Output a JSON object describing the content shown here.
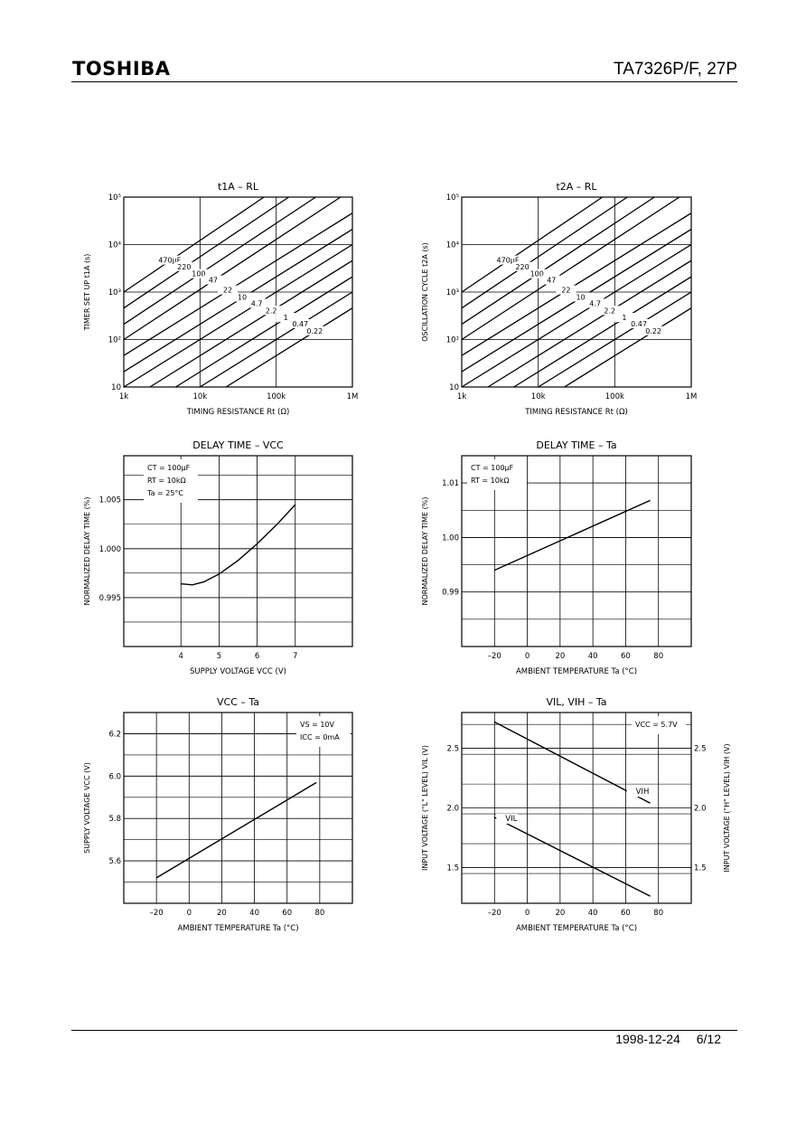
{
  "header": {
    "brand": "TOSHIBA",
    "part_number": "TA7326P/F, 27P"
  },
  "footer": {
    "date": "1998-12-24",
    "page": "6/12"
  },
  "chart_data": [
    {
      "id": "t1a",
      "type": "line",
      "title": "t1A – RL",
      "xlabel": "TIMING RESISTANCE  Rt  (Ω)",
      "ylabel": "TIMER SET UP  t1A  (s)",
      "xscale": "log",
      "yscale": "log",
      "xlim": [
        1000,
        1000000
      ],
      "ylim": [
        10,
        100000
      ],
      "xticks": [
        "1k",
        "10k",
        "100k",
        "1M"
      ],
      "yticks": [
        "10",
        "10²",
        "10³",
        "10⁴",
        "10⁵"
      ],
      "series": [
        {
          "name": "470μF",
          "x": [
            1000,
            69000
          ],
          "y": [
            1000,
            100000
          ]
        },
        {
          "name": "220",
          "x": [
            1000,
            146000
          ],
          "y": [
            460,
            100000
          ]
        },
        {
          "name": "100",
          "x": [
            1000,
            330000
          ],
          "y": [
            210,
            100000
          ]
        },
        {
          "name": "47",
          "x": [
            1000,
            700000
          ],
          "y": [
            100,
            100000
          ]
        },
        {
          "name": "22",
          "x": [
            1000,
            1000000
          ],
          "y": [
            46,
            46000
          ]
        },
        {
          "name": "10",
          "x": [
            1000,
            1000000
          ],
          "y": [
            21,
            21000
          ]
        },
        {
          "name": "4.7",
          "x": [
            1000,
            1000000
          ],
          "y": [
            10,
            10000
          ]
        },
        {
          "name": "2.2",
          "x": [
            2200,
            1000000
          ],
          "y": [
            10,
            4600
          ]
        },
        {
          "name": "1",
          "x": [
            4800,
            1000000
          ],
          "y": [
            10,
            2100
          ]
        },
        {
          "name": "0.47",
          "x": [
            10000,
            1000000
          ],
          "y": [
            10,
            1000
          ]
        },
        {
          "name": "0.22",
          "x": [
            22000,
            1000000
          ],
          "y": [
            10,
            460
          ]
        }
      ]
    },
    {
      "id": "t2a",
      "type": "line",
      "title": "t2A – RL",
      "xlabel": "TIMING RESISTANCE  Rt  (Ω)",
      "ylabel": "OSCILLATION CYCLE  t2A  (s)",
      "xscale": "log",
      "yscale": "log",
      "xlim": [
        1000,
        1000000
      ],
      "ylim": [
        10,
        100000
      ],
      "xticks": [
        "1k",
        "10k",
        "100k",
        "1M"
      ],
      "yticks": [
        "10",
        "10²",
        "10³",
        "10⁴",
        "10⁵"
      ],
      "series": [
        {
          "name": "470μF",
          "x": [
            1000,
            69000
          ],
          "y": [
            1000,
            100000
          ]
        },
        {
          "name": "220",
          "x": [
            1000,
            146000
          ],
          "y": [
            460,
            100000
          ]
        },
        {
          "name": "100",
          "x": [
            1000,
            330000
          ],
          "y": [
            210,
            100000
          ]
        },
        {
          "name": "47",
          "x": [
            1000,
            700000
          ],
          "y": [
            100,
            100000
          ]
        },
        {
          "name": "22",
          "x": [
            1000,
            1000000
          ],
          "y": [
            46,
            46000
          ]
        },
        {
          "name": "10",
          "x": [
            1000,
            1000000
          ],
          "y": [
            21,
            21000
          ]
        },
        {
          "name": "4.7",
          "x": [
            1000,
            1000000
          ],
          "y": [
            10,
            10000
          ]
        },
        {
          "name": "2.2",
          "x": [
            2200,
            1000000
          ],
          "y": [
            10,
            4600
          ]
        },
        {
          "name": "1",
          "x": [
            4800,
            1000000
          ],
          "y": [
            10,
            2100
          ]
        },
        {
          "name": "0.47",
          "x": [
            10000,
            1000000
          ],
          "y": [
            10,
            1000
          ]
        },
        {
          "name": "0.22",
          "x": [
            22000,
            1000000
          ],
          "y": [
            10,
            460
          ]
        }
      ]
    },
    {
      "id": "delay_vcc",
      "type": "line",
      "title": "DELAY TIME – VCC",
      "xlabel": "SUPPLY VOLTAGE  VCC  (V)",
      "ylabel": "NORMALIZED DELAY TIME  (%)",
      "xlim": [
        2.5,
        8.5
      ],
      "ylim": [
        0.99,
        1.0095
      ],
      "xticks": [
        4,
        5,
        6,
        7
      ],
      "yticks": [
        "0.995",
        "1.000",
        "1.005"
      ],
      "annotations": [
        "CT = 100μF",
        "RT = 10kΩ",
        "Ta = 25°C"
      ],
      "series": [
        {
          "x": [
            4.0,
            4.3,
            4.6,
            5.0,
            5.5,
            6.0,
            6.5,
            7.0
          ],
          "y": [
            0.9964,
            0.9963,
            0.9966,
            0.9974,
            0.9988,
            1.0005,
            1.0024,
            1.0045
          ]
        }
      ]
    },
    {
      "id": "delay_ta",
      "type": "line",
      "title": "DELAY TIME – Ta",
      "xlabel": "AMBIENT TEMPERATURE  Ta  (°C)",
      "ylabel": "NORMALIZED DELAY TIME  (%)",
      "xlim": [
        -40,
        100
      ],
      "ylim": [
        0.98,
        1.015
      ],
      "xticks": [
        "–20",
        "0",
        "20",
        "40",
        "60",
        "80"
      ],
      "yticks": [
        "0.99",
        "1.00",
        "1.01"
      ],
      "annotations": [
        "CT = 100μF",
        "RT = 10kΩ"
      ],
      "series": [
        {
          "x": [
            -20,
            75
          ],
          "y": [
            0.994,
            1.0068
          ]
        }
      ]
    },
    {
      "id": "vcc_ta",
      "type": "line",
      "title": "VCC – Ta",
      "xlabel": "AMBIENT TEMPERATURE  Ta  (°C)",
      "ylabel": "SUPPLY VOLTAGE  VCC  (V)",
      "xlim": [
        -40,
        100
      ],
      "ylim": [
        5.4,
        6.3
      ],
      "xticks": [
        "–20",
        "0",
        "20",
        "40",
        "60",
        "80"
      ],
      "yticks": [
        "5.6",
        "5.8",
        "6.0",
        "6.2"
      ],
      "annotations": [
        "VS = 10V",
        "ICC = 0mA"
      ],
      "series": [
        {
          "x": [
            -20,
            78
          ],
          "y": [
            5.52,
            5.97
          ]
        }
      ]
    },
    {
      "id": "vil_vih_ta",
      "type": "line",
      "title": "VIL, VIH – Ta",
      "xlabel": "AMBIENT TEMPERATURE  Ta  (°C)",
      "ylabel": "INPUT VOLTAGE (\"L\" LEVEL)  VIL  (V)",
      "ylabel_right": "INPUT VOLTAGE (\"H\" LEVEL)  VIH  (V)",
      "xlim": [
        -40,
        100
      ],
      "ylim": [
        1.2,
        2.8
      ],
      "xticks": [
        "–20",
        "0",
        "20",
        "40",
        "60",
        "80"
      ],
      "yticks": [
        "1.5",
        "2.0",
        "2.5"
      ],
      "annotations": [
        "VCC = 5.7V"
      ],
      "series": [
        {
          "name": "VIH",
          "x": [
            -20,
            75
          ],
          "y": [
            2.72,
            2.04
          ]
        },
        {
          "name": "VIL",
          "x": [
            -20,
            75
          ],
          "y": [
            1.92,
            1.26
          ]
        }
      ]
    }
  ]
}
